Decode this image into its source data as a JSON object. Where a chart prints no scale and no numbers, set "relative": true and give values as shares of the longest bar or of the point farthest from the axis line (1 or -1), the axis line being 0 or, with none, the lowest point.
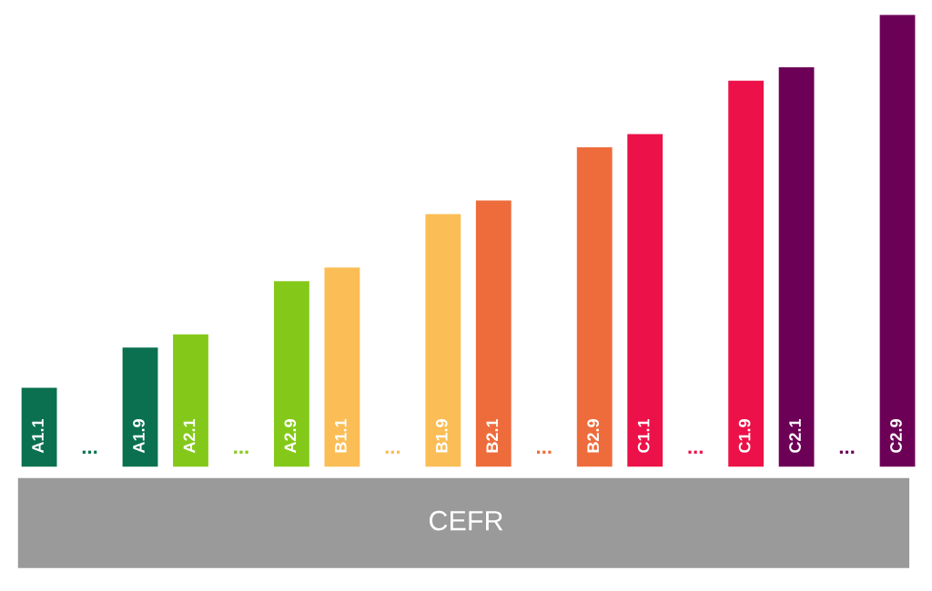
{
  "chart_data": {
    "type": "bar",
    "relative": true,
    "categories": [
      "A1.1",
      "...",
      "A1.9",
      "A2.1",
      "...",
      "A2.9",
      "B1.1",
      "...",
      "B1.9",
      "B2.1",
      "...",
      "B2.9",
      "C1.1",
      "...",
      "C1.9",
      "C2.1",
      "...",
      "C2.9"
    ],
    "values": [
      0.175,
      null,
      0.264,
      0.293,
      null,
      0.411,
      0.441,
      null,
      0.559,
      0.589,
      null,
      0.707,
      0.736,
      null,
      0.854,
      0.884,
      null,
      1
    ],
    "colors": [
      "#0a7050",
      "#0a7050",
      "#0a7050",
      "#84c91a",
      "#84c91a",
      "#84c91a",
      "#fbbd55",
      "#fbbd55",
      "#fbbd55",
      "#ee6c3c",
      "#ee6c3c",
      "#ee6c3c",
      "#ec1148",
      "#ec1148",
      "#ec1148",
      "#6c0057",
      "#6c0057",
      "#6c0057"
    ],
    "annotations": [
      "CEFR"
    ]
  }
}
